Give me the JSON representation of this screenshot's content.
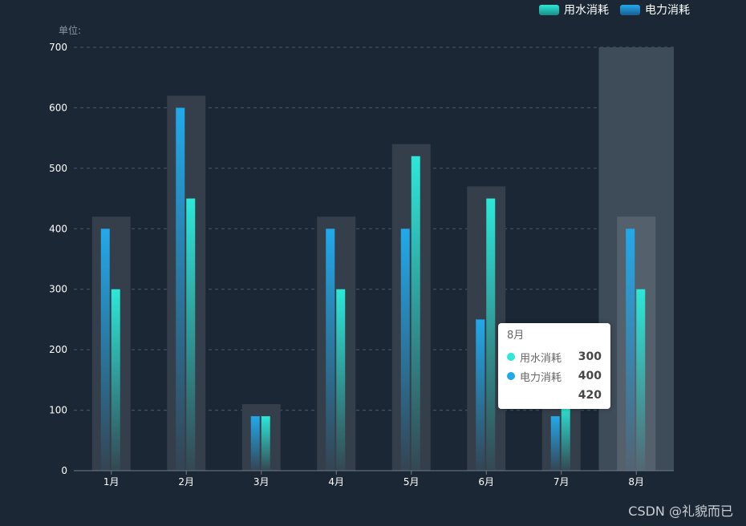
{
  "chart_data": {
    "type": "bar",
    "categories": [
      "1月",
      "2月",
      "3月",
      "4月",
      "5月",
      "6月",
      "7月",
      "8月"
    ],
    "series": [
      {
        "name": "电力消耗",
        "values": [
          400,
          600,
          90,
          400,
          400,
          250,
          90,
          400
        ],
        "color": "#22a9ea"
      },
      {
        "name": "用水消耗",
        "values": [
          300,
          450,
          90,
          300,
          520,
          450,
          110,
          300
        ],
        "color": "#2ce8d8"
      }
    ],
    "background_values": [
      420,
      620,
      110,
      420,
      540,
      470,
      110,
      420
    ],
    "ylim": [
      0,
      700
    ],
    "yticks": [
      0,
      100,
      200,
      300,
      400,
      500,
      600,
      700
    ],
    "ylabel": "单位:",
    "grid": true,
    "legend_position": "top-right",
    "highlighted_category": "8月"
  },
  "legend": {
    "water": "用水消耗",
    "power": "电力消耗"
  },
  "tooltip": {
    "title": "8月",
    "rows": [
      {
        "name": "用水消耗",
        "value": "300",
        "color": "#2ce8d8"
      },
      {
        "name": "电力消耗",
        "value": "400",
        "color": "#22a9ea"
      },
      {
        "name": "",
        "value": "420",
        "color": ""
      }
    ]
  },
  "watermark": "CSDN @礼貌而已"
}
